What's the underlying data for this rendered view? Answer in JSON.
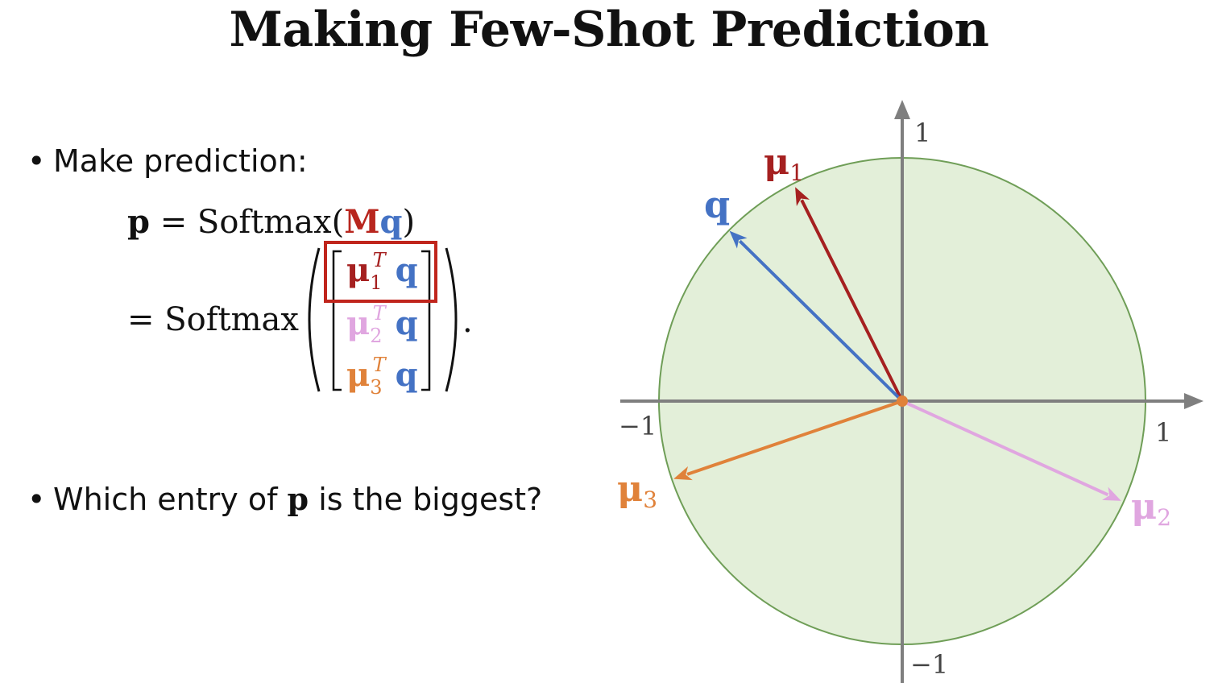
{
  "title": "Making Few-Shot Prediction",
  "bullets": {
    "first": "Make prediction:",
    "second_prefix": "Which entry of ",
    "second_var": "p",
    "second_suffix": " is the biggest?"
  },
  "equation": {
    "line1_lhs": "p",
    "line1_eq": "= Softmax(",
    "line1_M": "M",
    "line1_q": "q",
    "line1_close": ")",
    "line2_eq": "= Softmax",
    "mu": "μ",
    "sup": "T",
    "q": "q",
    "rows": [
      {
        "sub": "1",
        "color": "#a52020"
      },
      {
        "sub": "2",
        "color": "#e0a6e0"
      },
      {
        "sub": "3",
        "color": "#e0823a"
      }
    ],
    "period": "."
  },
  "diagram": {
    "axis_labels": {
      "y_pos": "1",
      "y_neg": "−1",
      "x_pos": "1",
      "x_neg": "−1"
    },
    "vectors": [
      {
        "name": "mu1",
        "label": "μ",
        "sub": "1",
        "color": "#a52020",
        "x": -0.44,
        "y": 0.88
      },
      {
        "name": "q",
        "label": "q",
        "sub": "",
        "color": "#4472c4",
        "x": -0.71,
        "y": 0.7
      },
      {
        "name": "mu2",
        "label": "μ",
        "sub": "2",
        "color": "#e0a6e0",
        "x": 0.9,
        "y": -0.41
      },
      {
        "name": "mu3",
        "label": "μ",
        "sub": "3",
        "color": "#e0823a",
        "x": -0.94,
        "y": -0.32
      }
    ],
    "circle_fill": "#e3efd9",
    "circle_stroke": "#6f9e57",
    "axis_color": "#7f7f7f",
    "highlight_color": "#c0251c"
  }
}
